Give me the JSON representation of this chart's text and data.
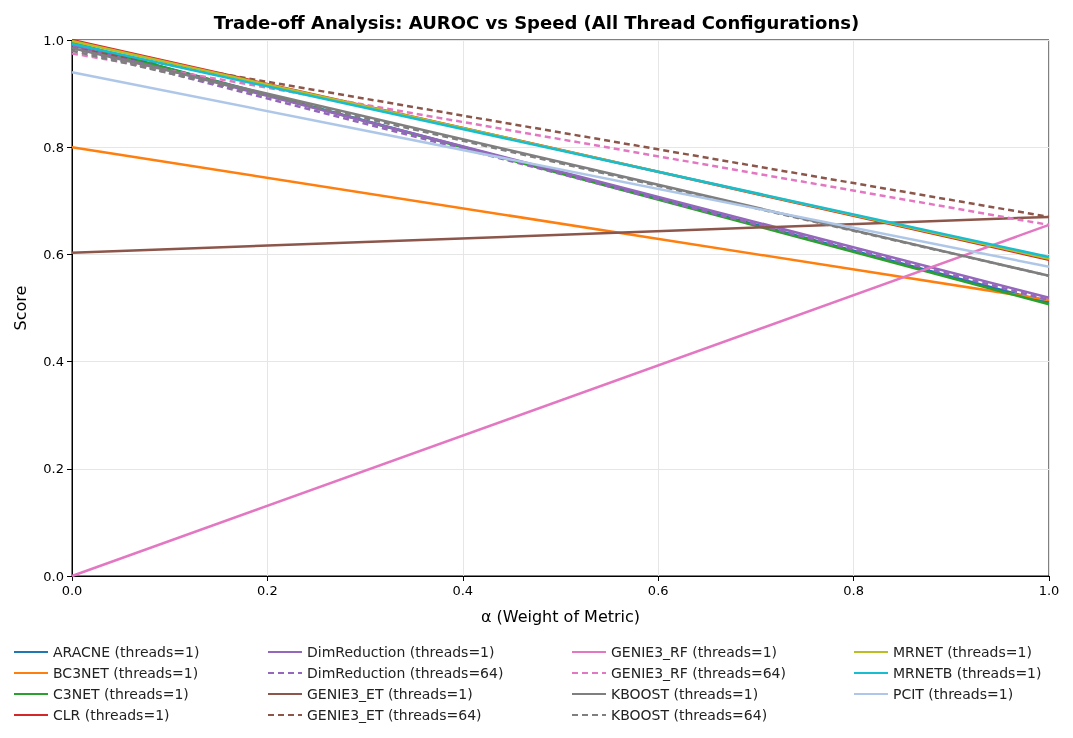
{
  "chart_data": {
    "type": "line",
    "title": "Trade-off Analysis: AUROC vs Speed (All Thread Configurations)",
    "xlabel": "α (Weight of Metric)",
    "ylabel": "Score",
    "x": [
      0,
      1
    ],
    "xlim": [
      0,
      1
    ],
    "xticks": [
      {
        "value": 0,
        "label": "0.0"
      },
      0.2,
      0.4,
      0.6,
      0.8,
      {
        "value": 1,
        "label": "1.0"
      }
    ],
    "ylim": [
      0,
      1
    ],
    "yticks": [
      {
        "value": 0,
        "label": "0.0"
      },
      0.2,
      0.4,
      0.6,
      0.8,
      {
        "value": 1,
        "label": "1.0"
      }
    ],
    "grid": true,
    "legend": "bottom",
    "marker": "none",
    "line_style": "solid",
    "series": [
      {
        "name": "ARACNE (threads=1)",
        "color": "#1f77b4",
        "values": [
          0.995,
          0.51
        ]
      },
      {
        "name": "BC3NET (threads=1)",
        "color": "#ff7f0e",
        "values": [
          0.8,
          0.515
        ]
      },
      {
        "name": "C3NET (threads=1)",
        "color": "#2ca02c",
        "values": [
          0.995,
          0.507
        ]
      },
      {
        "name": "CLR (threads=1)",
        "color": "#d62728",
        "values": [
          1.0,
          0.59
        ]
      },
      {
        "name": "DimReduction (threads=1)",
        "color": "#9467bd",
        "values": [
          0.99,
          0.519
        ]
      },
      {
        "name": "DimReduction (threads=64)",
        "color": "#9467bd",
        "line_style": "dashed",
        "values": [
          0.985,
          0.515
        ]
      },
      {
        "name": "GENIE3_ET (threads=1)",
        "color": "#8c564b",
        "values": [
          0.603,
          0.67
        ]
      },
      {
        "name": "GENIE3_ET (threads=64)",
        "color": "#8c564b",
        "line_style": "dashed",
        "values": [
          0.985,
          0.67
        ]
      },
      {
        "name": "GENIE3_RF (threads=1)",
        "color": "#e377c2",
        "values": [
          0.0,
          0.655
        ]
      },
      {
        "name": "GENIE3_RF (threads=64)",
        "color": "#e377c2",
        "line_style": "dashed",
        "values": [
          0.975,
          0.655
        ]
      },
      {
        "name": "KBOOST (threads=1)",
        "color": "#7f7f7f",
        "values": [
          0.985,
          0.56
        ]
      },
      {
        "name": "KBOOST (threads=64)",
        "color": "#7f7f7f",
        "line_style": "dashed",
        "values": [
          0.98,
          0.56
        ]
      },
      {
        "name": "MRNET (threads=1)",
        "color": "#bcbd22",
        "values": [
          0.998,
          0.592
        ]
      },
      {
        "name": "MRNETB (threads=1)",
        "color": "#17becf",
        "values": [
          0.993,
          0.595
        ]
      },
      {
        "name": "PCIT (threads=1)",
        "color": "#aec7e8",
        "values": [
          0.94,
          0.577
        ]
      }
    ]
  }
}
